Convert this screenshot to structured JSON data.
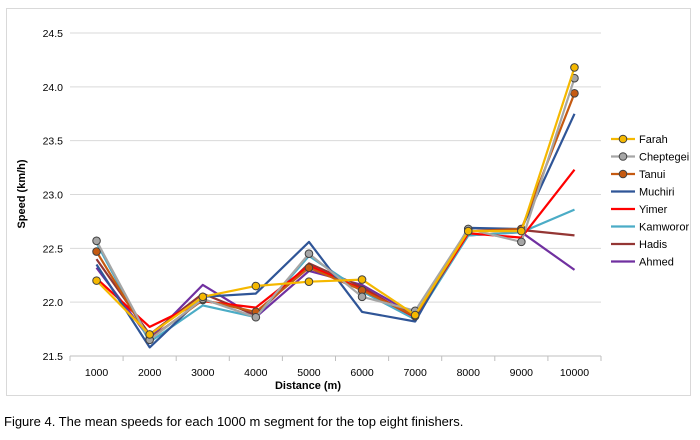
{
  "chart_data": {
    "type": "line",
    "title": "",
    "xlabel": "Distance (m)",
    "ylabel": "Speed (km/h)",
    "x": [
      1000,
      2000,
      3000,
      4000,
      5000,
      6000,
      7000,
      8000,
      9000,
      10000
    ],
    "x_tick_labels": [
      "1000",
      "2000",
      "3000",
      "4000",
      "5000",
      "6000",
      "7000",
      "8000",
      "9000",
      "10000"
    ],
    "ylim": [
      21.5,
      24.5
    ],
    "y_ticks": [
      21.5,
      22.0,
      22.5,
      23.0,
      23.5,
      24.0,
      24.5
    ],
    "y_tick_labels": [
      "21.5",
      "22.0",
      "22.5",
      "23.0",
      "23.5",
      "24.0",
      "24.5"
    ],
    "grid": "horizontal",
    "legend_position": "right",
    "series": [
      {
        "name": "Farah",
        "color": "#f5b800",
        "marker": "circle",
        "values": [
          22.2,
          21.7,
          22.05,
          22.15,
          22.19,
          22.21,
          21.88,
          22.66,
          22.66,
          24.18
        ]
      },
      {
        "name": "Cheptegei",
        "color": "#a6a6a6",
        "marker": "circle",
        "values": [
          22.57,
          21.65,
          22.03,
          21.86,
          22.45,
          22.05,
          21.92,
          22.68,
          22.56,
          24.08
        ]
      },
      {
        "name": "Tanui",
        "color": "#c55a11",
        "marker": "circle",
        "values": [
          22.47,
          21.66,
          22.02,
          21.91,
          22.32,
          22.11,
          21.87,
          22.66,
          22.68,
          23.94
        ]
      },
      {
        "name": "Muchiri",
        "color": "#2f5597",
        "marker": "none",
        "values": [
          22.35,
          21.58,
          22.05,
          22.08,
          22.56,
          21.91,
          21.82,
          22.69,
          22.68,
          23.75
        ]
      },
      {
        "name": "Yimer",
        "color": "#ff0000",
        "marker": "none",
        "values": [
          22.22,
          21.77,
          22.01,
          21.95,
          22.34,
          22.12,
          21.86,
          22.64,
          22.6,
          23.23
        ]
      },
      {
        "name": "Kamworor",
        "color": "#4bacc6",
        "marker": "none",
        "values": [
          22.55,
          21.63,
          21.97,
          21.86,
          22.43,
          22.1,
          21.84,
          22.62,
          22.65,
          22.86
        ]
      },
      {
        "name": "Hadis",
        "color": "#943634",
        "marker": "none",
        "values": [
          22.4,
          21.7,
          22.08,
          21.88,
          22.36,
          22.14,
          21.85,
          22.66,
          22.67,
          22.62
        ]
      },
      {
        "name": "Ahmed",
        "color": "#7030a0",
        "marker": "none",
        "values": [
          22.32,
          21.66,
          22.16,
          21.86,
          22.29,
          22.16,
          21.88,
          22.62,
          22.65,
          22.3
        ]
      }
    ]
  },
  "caption": "Figure 4. The mean speeds for each 1000 m segment for the top eight finishers."
}
